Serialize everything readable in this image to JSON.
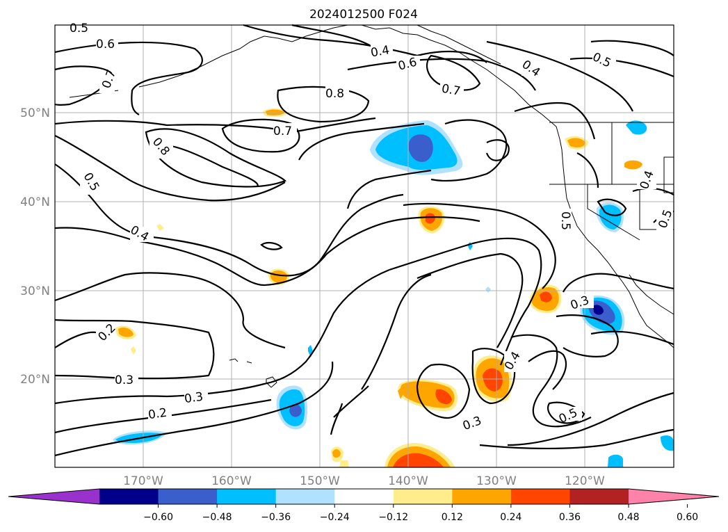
{
  "title": "2024012500 F024",
  "axes": {
    "lat_labels": [
      "50°N",
      "40°N",
      "30°N",
      "20°N"
    ],
    "lon_labels": [
      "170°W",
      "160°W",
      "150°W",
      "140°W",
      "130°W",
      "120°W"
    ]
  },
  "contour_labels": [
    "0.5",
    "0.6",
    "0.7",
    "0.4",
    "0.6",
    "0.7",
    "0.4",
    "0.5",
    "0.8",
    "0.7",
    "0.8",
    "0.5",
    "0.4",
    "0.4",
    "0.5",
    "0.5",
    "0.3",
    "0.2",
    "0.3",
    "0.3",
    "0.2",
    "0.4",
    "0.3",
    "0.5"
  ],
  "colorbar": {
    "ticks": [
      "−0.60",
      "−0.48",
      "−0.36",
      "−0.24",
      "−0.12",
      "0.12",
      "0.24",
      "0.36",
      "0.48",
      "0.60"
    ],
    "colors": [
      "#9932cc",
      "#00008b",
      "#3a5fcd",
      "#00bfff",
      "#b0e2ff",
      "#ffffff",
      "#ffec8b",
      "#ffa500",
      "#ff4500",
      "#b22222",
      "#ff82ab"
    ]
  }
}
